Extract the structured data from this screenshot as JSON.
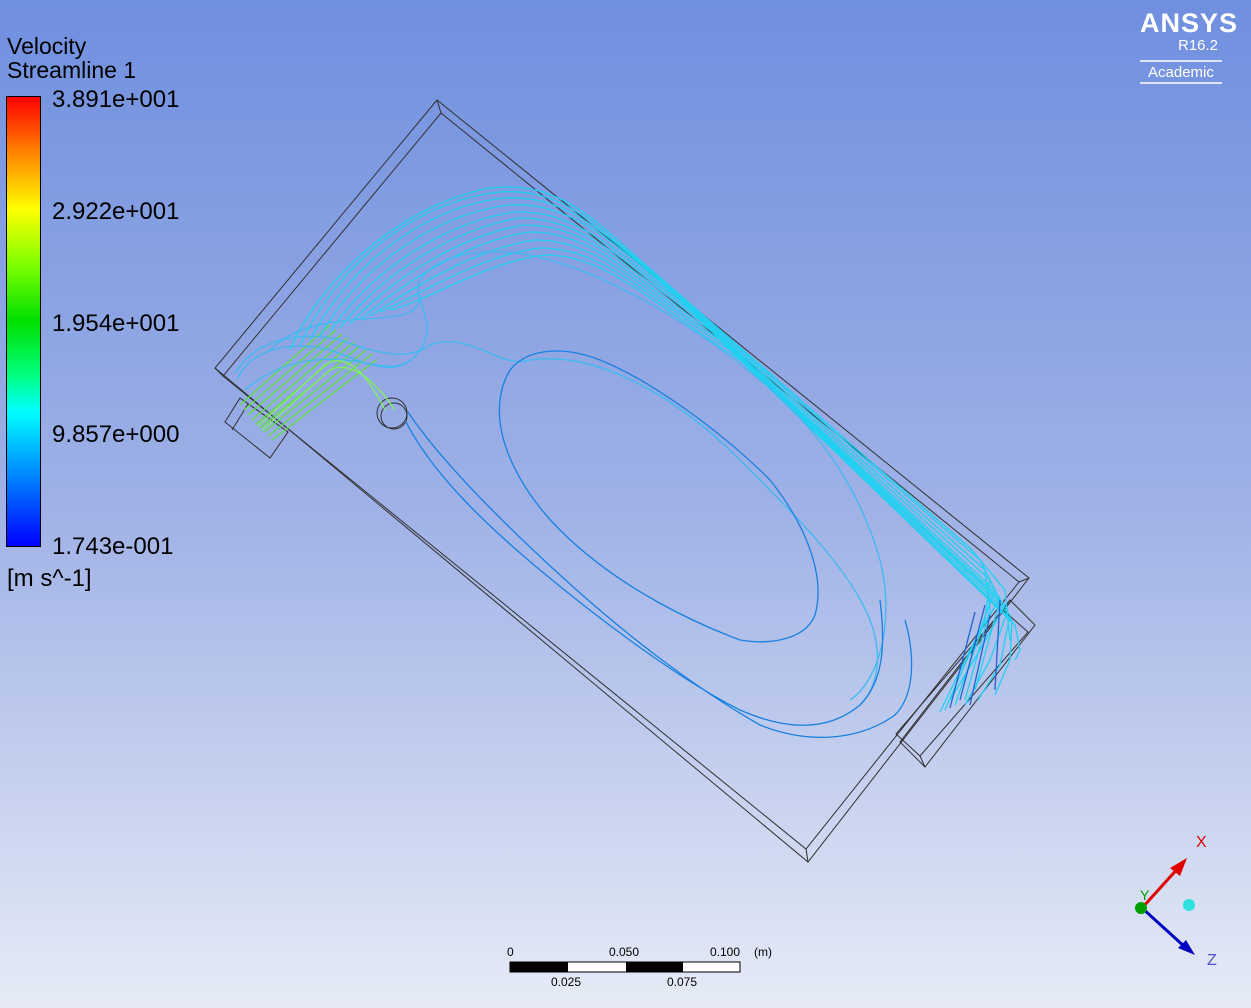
{
  "legend": {
    "title_line1": "Velocity",
    "title_line2": "Streamline 1",
    "ticks": [
      "3.891e+001",
      "2.922e+001",
      "1.954e+001",
      "9.857e+000",
      "1.743e-001"
    ],
    "unit": "[m s^-1]",
    "colormap": [
      "#0000ff",
      "#00ffff",
      "#00e000",
      "#ffff00",
      "#ff0000"
    ]
  },
  "logo": {
    "brand": "ANSYS",
    "version": "R16.2",
    "edition": "Academic"
  },
  "scale_bar": {
    "top_labels": [
      "0",
      "0.050",
      "0.100"
    ],
    "unit": "(m)",
    "bottom_labels": [
      "0.025",
      "0.075"
    ]
  },
  "triad": {
    "x_label": "X",
    "y_label": "Y",
    "z_label": "Z",
    "x_color": "#e00000",
    "y_color": "#00a000",
    "z_color": "#0000c0"
  },
  "colors": {
    "background_top": "#6f8fdf",
    "background_bottom": "#e6ebf6",
    "wireframe": "#303030"
  }
}
